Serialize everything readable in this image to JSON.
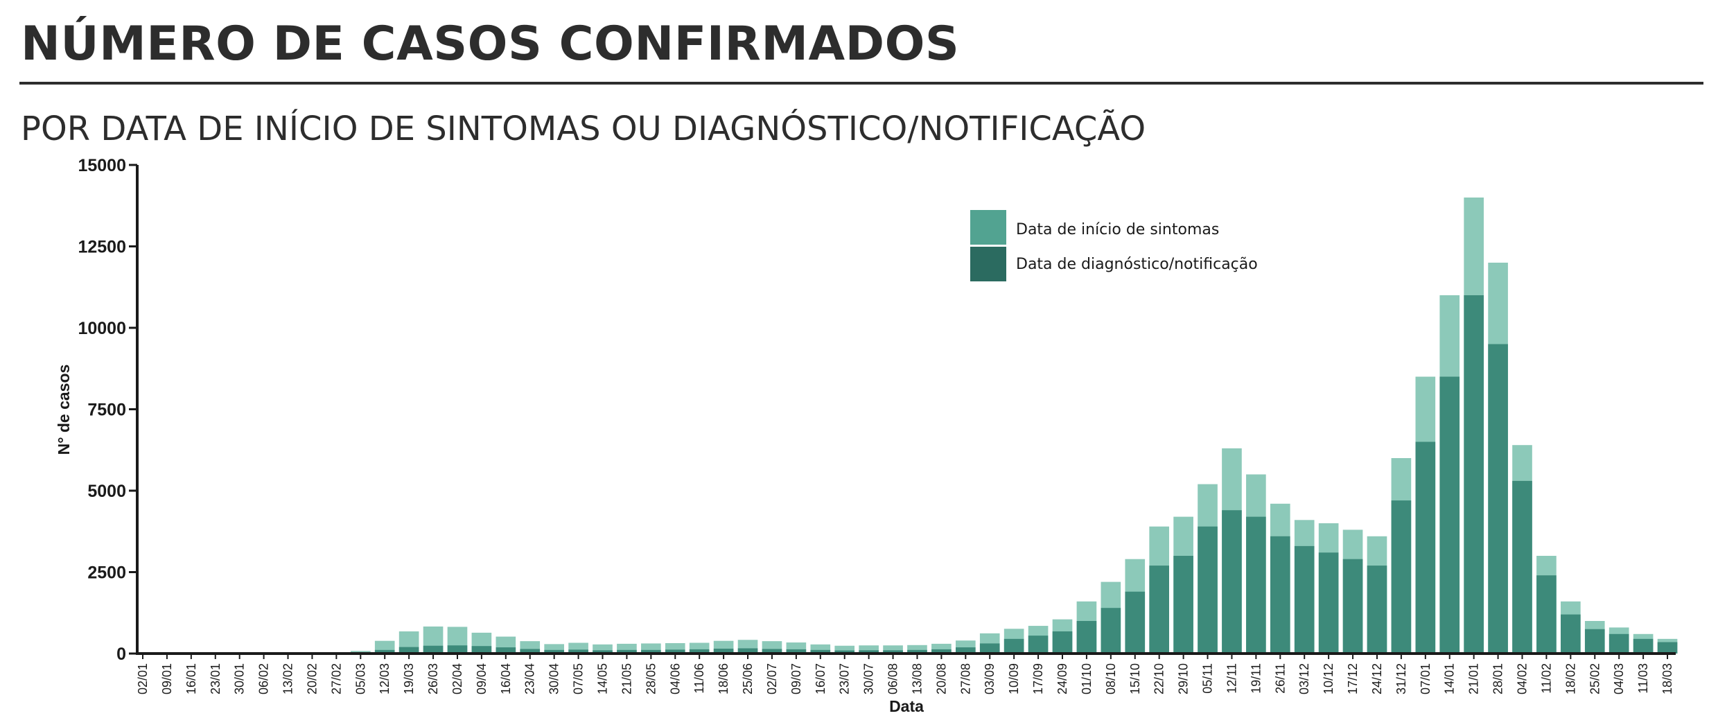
{
  "header": {
    "title": "NÚMERO DE CASOS CONFIRMADOS",
    "subtitle": "POR DATA DE INÍCIO DE SINTOMAS OU DIAGNÓSTICO/NOTIFICAÇÃO"
  },
  "chart_data": {
    "type": "bar",
    "title": "NÚMERO DE CASOS CONFIRMADOS",
    "subtitle": "POR DATA DE INÍCIO DE SINTOMAS OU DIAGNÓSTICO/NOTIFICAÇÃO",
    "xlabel": "Data",
    "ylabel": "N° de casos",
    "ylim": [
      0,
      15000
    ],
    "yticks": [
      0,
      2500,
      5000,
      7500,
      10000,
      12500,
      15000
    ],
    "xticks": [
      "02/01",
      "09/01",
      "16/01",
      "23/01",
      "30/01",
      "06/02",
      "13/02",
      "20/02",
      "27/02",
      "05/03",
      "12/03",
      "19/03",
      "26/03",
      "02/04",
      "09/04",
      "16/04",
      "23/04",
      "30/04",
      "07/05",
      "14/05",
      "21/05",
      "28/05",
      "04/06",
      "11/06",
      "18/06",
      "25/06",
      "02/07",
      "09/07",
      "16/07",
      "23/07",
      "30/07",
      "06/08",
      "13/08",
      "20/08",
      "27/08",
      "03/09",
      "10/09",
      "17/09",
      "24/09",
      "01/10",
      "08/10",
      "15/10",
      "22/10",
      "29/10",
      "05/11",
      "12/11",
      "19/11",
      "26/11",
      "03/12",
      "10/12",
      "17/12",
      "24/12",
      "31/12",
      "07/01",
      "14/01",
      "21/01",
      "28/01",
      "04/02",
      "11/02",
      "18/02",
      "25/02",
      "04/03",
      "11/03",
      "18/03"
    ],
    "grid": false,
    "legend_position": "top-right",
    "overlay": true,
    "colors": {
      "sintomas": "#8cc9b9",
      "notificacao": "#3d8a7a",
      "legend_sintomas": "#52a391",
      "legend_notificacao": "#2b6b60"
    },
    "series": [
      {
        "name": "Data de início de sintomas",
        "values": [
          0,
          0,
          0,
          0,
          0,
          0,
          0,
          0,
          0,
          80,
          390,
          680,
          830,
          820,
          640,
          520,
          380,
          290,
          330,
          280,
          300,
          310,
          320,
          330,
          390,
          420,
          380,
          340,
          280,
          240,
          250,
          250,
          260,
          300,
          400,
          620,
          760,
          850,
          1050,
          1600,
          2200,
          2900,
          3900,
          4200,
          5200,
          6300,
          5500,
          4600,
          4100,
          4000,
          3800,
          3600,
          6000,
          8500,
          11000,
          14000,
          12000,
          6400,
          3000,
          1600,
          1000,
          800,
          600,
          450
        ]
      },
      {
        "name": "Data de diagnóstico/notificação",
        "values": [
          0,
          0,
          0,
          0,
          0,
          0,
          0,
          0,
          0,
          5,
          110,
          200,
          240,
          250,
          230,
          190,
          140,
          110,
          120,
          100,
          110,
          110,
          120,
          130,
          150,
          160,
          140,
          130,
          110,
          95,
          100,
          100,
          110,
          130,
          190,
          310,
          450,
          550,
          680,
          1000,
          1400,
          1900,
          2700,
          3000,
          3900,
          4400,
          4200,
          3600,
          3300,
          3100,
          2900,
          2700,
          4700,
          6500,
          8500,
          11000,
          9500,
          5300,
          2400,
          1200,
          750,
          600,
          450,
          350
        ]
      }
    ]
  }
}
